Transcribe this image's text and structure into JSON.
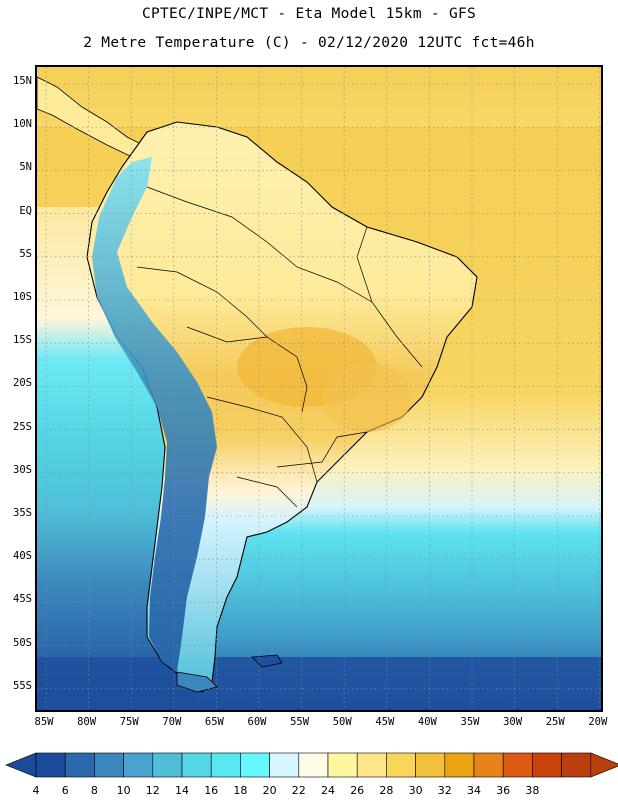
{
  "title_line1": "CPTEC/INPE/MCT -  Eta Model 15km - GFS",
  "title_line2": "2 Metre Temperature (C) - 02/12/2020 12UTC fct=46h",
  "map": {
    "lat_labels": [
      "15N",
      "10N",
      "5N",
      "EQ",
      "5S",
      "10S",
      "15S",
      "20S",
      "25S",
      "30S",
      "35S",
      "40S",
      "45S",
      "50S",
      "55S"
    ],
    "lon_labels": [
      "85W",
      "80W",
      "75W",
      "70W",
      "65W",
      "60W",
      "55W",
      "50W",
      "45W",
      "40W",
      "35W",
      "30W",
      "25W",
      "20W"
    ],
    "region": "South America"
  },
  "colorbar": {
    "labels": [
      "4",
      "6",
      "8",
      "10",
      "12",
      "14",
      "16",
      "18",
      "20",
      "22",
      "24",
      "26",
      "28",
      "30",
      "32",
      "34",
      "36",
      "38"
    ],
    "colors": [
      "#1a4a9a",
      "#2a6aac",
      "#3b86bc",
      "#4aa3cf",
      "#4fbfd8",
      "#55d6e3",
      "#5ae8f0",
      "#66f8ff",
      "#d7f6ff",
      "#fefbe6",
      "#fef6a0",
      "#fde68a",
      "#f8d65a",
      "#f2c03a",
      "#eba312",
      "#e7831c",
      "#dc5a12",
      "#c8420a",
      "#b9400e"
    ],
    "left_end_color": "#1a4a9a",
    "right_end_color": "#b9400e"
  }
}
